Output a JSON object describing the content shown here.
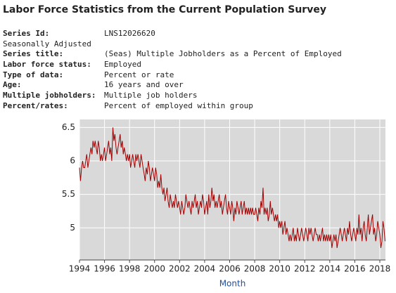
{
  "header": {
    "title": "Labor Force Statistics from the Current Population Survey"
  },
  "metadata": [
    {
      "label": "Series Id:",
      "value": "LNS12026620"
    },
    {
      "label": "Seasonally Adjusted"
    },
    {
      "label": "Series title:",
      "value": "(Seas) Multiple Jobholders as a Percent of Employed"
    },
    {
      "label": "Labor force status:",
      "value": "Employed"
    },
    {
      "label": "Type of data:",
      "value": "Percent or rate"
    },
    {
      "label": "Age:",
      "value": "16 years and over"
    },
    {
      "label": "Multiple jobholders:",
      "value": "Multiple job holders"
    },
    {
      "label": "Percent/rates:",
      "value": "Percent of employed within group"
    }
  ],
  "chart_data": {
    "type": "line",
    "x_label": "Month",
    "color": "#a00000",
    "grid": true,
    "xlim": [
      1994,
      2018.45
    ],
    "xticks": [
      1994,
      1996,
      1998,
      2000,
      2002,
      2004,
      2006,
      2008,
      2010,
      2012,
      2014,
      2016,
      2018
    ],
    "ylim": [
      4.52,
      6.62
    ],
    "yticks": [
      5,
      5.5,
      6,
      6.5
    ],
    "x": [
      1994,
      1994.08,
      1994.17,
      1994.25,
      1994.33,
      1994.42,
      1994.5,
      1994.58,
      1994.67,
      1994.75,
      1994.83,
      1994.92,
      1995,
      1995.08,
      1995.17,
      1995.25,
      1995.33,
      1995.42,
      1995.5,
      1995.58,
      1995.67,
      1995.75,
      1995.83,
      1995.92,
      1996,
      1996.08,
      1996.17,
      1996.25,
      1996.33,
      1996.42,
      1996.5,
      1996.58,
      1996.67,
      1996.75,
      1996.83,
      1996.92,
      1997,
      1997.08,
      1997.17,
      1997.25,
      1997.33,
      1997.42,
      1997.5,
      1997.58,
      1997.67,
      1997.75,
      1997.83,
      1997.92,
      1998,
      1998.08,
      1998.17,
      1998.25,
      1998.33,
      1998.42,
      1998.5,
      1998.58,
      1998.67,
      1998.75,
      1998.83,
      1998.92,
      1999,
      1999.08,
      1999.17,
      1999.25,
      1999.33,
      1999.42,
      1999.5,
      1999.58,
      1999.67,
      1999.75,
      1999.83,
      1999.92,
      2000,
      2000.08,
      2000.17,
      2000.25,
      2000.33,
      2000.42,
      2000.5,
      2000.58,
      2000.67,
      2000.75,
      2000.83,
      2000.92,
      2001,
      2001.08,
      2001.17,
      2001.25,
      2001.33,
      2001.42,
      2001.5,
      2001.58,
      2001.67,
      2001.75,
      2001.83,
      2001.92,
      2002,
      2002.08,
      2002.17,
      2002.25,
      2002.33,
      2002.42,
      2002.5,
      2002.58,
      2002.67,
      2002.75,
      2002.83,
      2002.92,
      2003,
      2003.08,
      2003.17,
      2003.25,
      2003.33,
      2003.42,
      2003.5,
      2003.58,
      2003.67,
      2003.75,
      2003.83,
      2003.92,
      2004,
      2004.08,
      2004.17,
      2004.25,
      2004.33,
      2004.42,
      2004.5,
      2004.58,
      2004.67,
      2004.75,
      2004.83,
      2004.92,
      2005,
      2005.08,
      2005.17,
      2005.25,
      2005.33,
      2005.42,
      2005.5,
      2005.58,
      2005.67,
      2005.75,
      2005.83,
      2005.92,
      2006,
      2006.08,
      2006.17,
      2006.25,
      2006.33,
      2006.42,
      2006.5,
      2006.58,
      2006.67,
      2006.75,
      2006.83,
      2006.92,
      2007,
      2007.08,
      2007.17,
      2007.25,
      2007.33,
      2007.42,
      2007.5,
      2007.58,
      2007.67,
      2007.75,
      2007.83,
      2007.92,
      2008,
      2008.08,
      2008.17,
      2008.25,
      2008.33,
      2008.42,
      2008.5,
      2008.58,
      2008.67,
      2008.75,
      2008.83,
      2008.92,
      2009,
      2009.08,
      2009.17,
      2009.25,
      2009.33,
      2009.42,
      2009.5,
      2009.58,
      2009.67,
      2009.75,
      2009.83,
      2009.92,
      2010,
      2010.08,
      2010.17,
      2010.25,
      2010.33,
      2010.42,
      2010.5,
      2010.58,
      2010.67,
      2010.75,
      2010.83,
      2010.92,
      2011,
      2011.08,
      2011.17,
      2011.25,
      2011.33,
      2011.42,
      2011.5,
      2011.58,
      2011.67,
      2011.75,
      2011.83,
      2011.92,
      2012,
      2012.08,
      2012.17,
      2012.25,
      2012.33,
      2012.42,
      2012.5,
      2012.58,
      2012.67,
      2012.75,
      2012.83,
      2012.92,
      2013,
      2013.08,
      2013.17,
      2013.25,
      2013.33,
      2013.42,
      2013.5,
      2013.58,
      2013.67,
      2013.75,
      2013.83,
      2013.92,
      2014,
      2014.08,
      2014.17,
      2014.25,
      2014.33,
      2014.42,
      2014.5,
      2014.58,
      2014.67,
      2014.75,
      2014.83,
      2014.92,
      2015,
      2015.08,
      2015.17,
      2015.25,
      2015.33,
      2015.42,
      2015.5,
      2015.58,
      2015.67,
      2015.75,
      2015.83,
      2015.92,
      2016,
      2016.08,
      2016.17,
      2016.25,
      2016.33,
      2016.42,
      2016.5,
      2016.58,
      2016.67,
      2016.75,
      2016.83,
      2016.92,
      2017,
      2017.08,
      2017.17,
      2017.25,
      2017.33,
      2017.42,
      2017.5,
      2017.58,
      2017.67,
      2017.75,
      2017.83,
      2017.92,
      2018,
      2018.08,
      2018.17,
      2018.25,
      2018.33,
      2018.42
    ],
    "values": [
      5.9,
      5.7,
      5.9,
      6.0,
      5.9,
      5.9,
      6.0,
      6.1,
      5.9,
      6.0,
      6.1,
      6.2,
      6.1,
      6.3,
      6.2,
      6.3,
      6.2,
      6.1,
      6.3,
      6.2,
      6.0,
      6.1,
      6.0,
      6.1,
      6.2,
      6.0,
      6.1,
      6.2,
      6.3,
      6.1,
      6.2,
      6.0,
      6.5,
      6.3,
      6.4,
      6.2,
      6.1,
      6.2,
      6.3,
      6.4,
      6.2,
      6.3,
      6.1,
      6.2,
      6.1,
      6.0,
      6.1,
      6.0,
      6.1,
      5.9,
      6.0,
      6.1,
      6.0,
      5.9,
      6.1,
      6.0,
      6.1,
      6.0,
      5.9,
      6.1,
      6.0,
      5.9,
      5.8,
      5.7,
      5.9,
      5.8,
      6.0,
      5.9,
      5.7,
      5.8,
      5.9,
      5.8,
      5.7,
      5.9,
      5.8,
      5.6,
      5.7,
      5.6,
      5.8,
      5.6,
      5.5,
      5.6,
      5.4,
      5.5,
      5.6,
      5.4,
      5.3,
      5.5,
      5.4,
      5.3,
      5.4,
      5.3,
      5.5,
      5.4,
      5.3,
      5.4,
      5.3,
      5.2,
      5.4,
      5.3,
      5.2,
      5.3,
      5.5,
      5.4,
      5.3,
      5.4,
      5.3,
      5.2,
      5.4,
      5.3,
      5.4,
      5.5,
      5.3,
      5.4,
      5.2,
      5.3,
      5.4,
      5.3,
      5.5,
      5.4,
      5.2,
      5.3,
      5.4,
      5.2,
      5.5,
      5.3,
      5.4,
      5.6,
      5.4,
      5.5,
      5.3,
      5.4,
      5.3,
      5.4,
      5.5,
      5.3,
      5.4,
      5.2,
      5.3,
      5.4,
      5.5,
      5.3,
      5.2,
      5.4,
      5.3,
      5.2,
      5.4,
      5.3,
      5.1,
      5.3,
      5.2,
      5.4,
      5.3,
      5.2,
      5.3,
      5.4,
      5.2,
      5.3,
      5.4,
      5.2,
      5.3,
      5.2,
      5.3,
      5.2,
      5.3,
      5.2,
      5.3,
      5.2,
      5.2,
      5.3,
      5.2,
      5.1,
      5.3,
      5.2,
      5.4,
      5.3,
      5.6,
      5.2,
      5.3,
      5.2,
      5.3,
      5.1,
      5.2,
      5.4,
      5.2,
      5.3,
      5.2,
      5.1,
      5.2,
      5.1,
      5.2,
      5.0,
      5.1,
      5.0,
      5.1,
      4.9,
      5.0,
      5.1,
      4.9,
      5.0,
      4.9,
      4.8,
      4.9,
      4.8,
      4.9,
      5.0,
      4.8,
      4.9,
      4.8,
      5.0,
      4.9,
      4.8,
      4.9,
      5.0,
      4.9,
      4.8,
      4.9,
      5.0,
      4.9,
      4.8,
      5.0,
      4.9,
      5.0,
      4.9,
      4.8,
      4.9,
      5.0,
      4.9,
      4.9,
      4.8,
      4.9,
      4.8,
      4.9,
      5.0,
      4.8,
      4.9,
      4.8,
      4.9,
      4.8,
      4.9,
      4.8,
      4.9,
      4.7,
      4.8,
      4.9,
      4.8,
      4.9,
      4.7,
      4.8,
      4.9,
      5.0,
      4.9,
      4.8,
      4.9,
      5.0,
      4.9,
      4.8,
      5.0,
      4.9,
      5.1,
      4.9,
      4.8,
      4.9,
      5.0,
      4.9,
      4.8,
      5.0,
      4.9,
      5.2,
      4.9,
      5.0,
      4.8,
      5.0,
      5.1,
      4.9,
      4.8,
      5.0,
      5.2,
      4.9,
      5.0,
      5.1,
      5.2,
      4.9,
      5.0,
      4.8,
      4.9,
      5.1,
      5.0,
      4.9,
      4.7,
      4.8,
      5.1,
      5.0,
      4.8
    ]
  }
}
